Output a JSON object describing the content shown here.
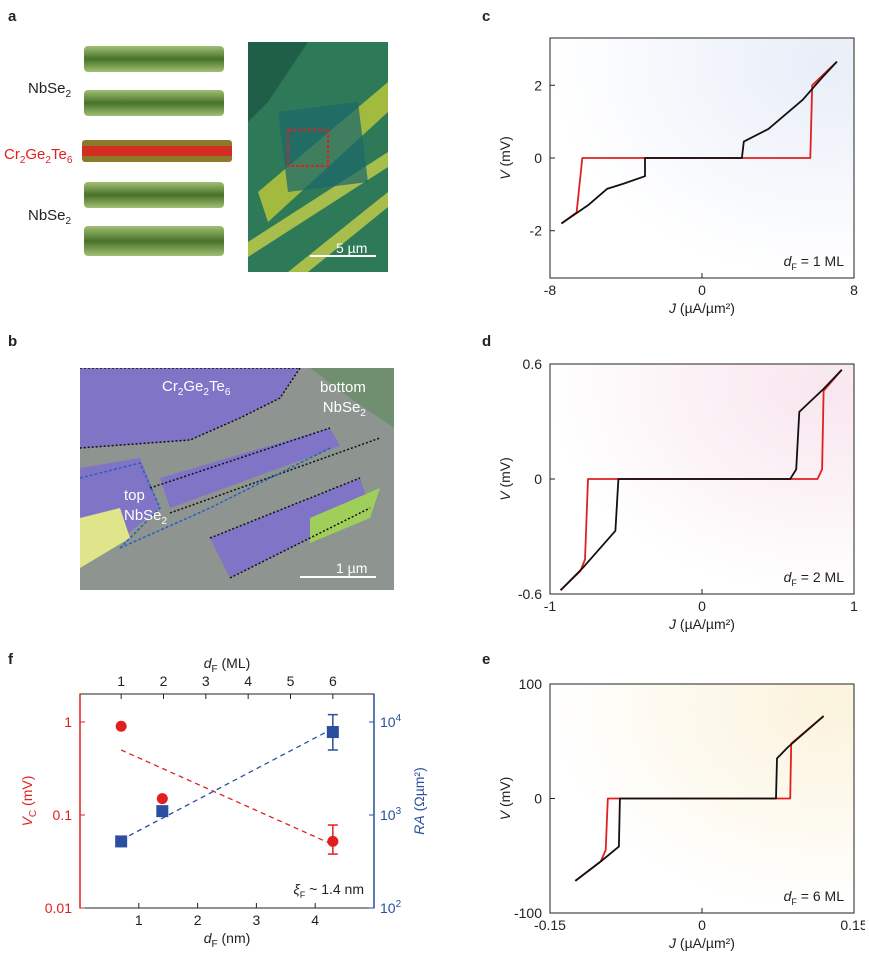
{
  "panels": {
    "a": "a",
    "b": "b",
    "c": "c",
    "d": "d",
    "e": "e",
    "f": "f"
  },
  "panel_a": {
    "layers": [
      {
        "base": "NbSe",
        "sub": "2",
        "color": "#222222"
      },
      {
        "base": "NbSe",
        "sub": "2",
        "color": "#222222"
      }
    ],
    "barrier": {
      "parts": [
        [
          "Cr",
          "2"
        ],
        [
          "Ge",
          "2"
        ],
        [
          "Te",
          "6"
        ]
      ],
      "color": "#e02020"
    },
    "scalebar": "5 µm"
  },
  "panel_b": {
    "labels": {
      "crgete": [
        [
          "Cr",
          "2"
        ],
        [
          "Ge",
          "2"
        ],
        [
          "Te",
          "6"
        ]
      ],
      "bottom_line1": "bottom",
      "bottom_line2": [
        [
          "NbSe",
          "2"
        ]
      ],
      "top_line1": "top",
      "top_line2": [
        [
          "NbSe",
          "2"
        ]
      ]
    },
    "scalebar": "1 µm"
  },
  "chart_data": [
    {
      "id": "c",
      "type": "line",
      "xlabel": "J (µA/µm²)",
      "ylabel": "V (mV)",
      "xlim": [
        -8,
        8
      ],
      "ylim": [
        -3.3,
        3.3
      ],
      "xticks": [
        -8,
        0,
        8
      ],
      "yticks": [
        -2,
        0,
        2
      ],
      "annotation": "dF = 1 ML",
      "series": [
        {
          "color": "#e02020",
          "points": [
            [
              -7.4,
              -1.8
            ],
            [
              -6.6,
              -1.5
            ],
            [
              -6.3,
              0.0
            ],
            [
              0,
              0
            ],
            [
              5.7,
              0.0
            ],
            [
              5.8,
              2.0
            ],
            [
              7.1,
              2.65
            ]
          ]
        },
        {
          "color": "#111111",
          "points": [
            [
              -7.4,
              -1.8
            ],
            [
              -6.0,
              -1.3
            ],
            [
              -5.0,
              -0.85
            ],
            [
              -4.1,
              -0.7
            ],
            [
              -3.0,
              -0.5
            ],
            [
              -3.0,
              0.0
            ],
            [
              2.1,
              0.0
            ],
            [
              2.2,
              0.45
            ],
            [
              3.5,
              0.8
            ],
            [
              5.3,
              1.6
            ],
            [
              6.3,
              2.2
            ],
            [
              7.1,
              2.65
            ]
          ]
        }
      ]
    },
    {
      "id": "d",
      "type": "line",
      "xlabel": "J (µA/µm²)",
      "ylabel": "V (mV)",
      "xlim": [
        -1,
        1
      ],
      "ylim": [
        -0.6,
        0.6
      ],
      "xticks": [
        -1,
        0,
        1
      ],
      "xticklabels": [
        "-1",
        "0",
        "1"
      ],
      "yticks": [
        -0.6,
        0,
        0.6
      ],
      "yticklabels": [
        "-0.6",
        "0",
        "0.6"
      ],
      "annotation": "dF = 2 ML",
      "series": [
        {
          "color": "#e02020",
          "points": [
            [
              -0.93,
              -0.58
            ],
            [
              -0.8,
              -0.48
            ],
            [
              -0.77,
              -0.42
            ],
            [
              -0.75,
              0.0
            ],
            [
              0.0,
              0.0
            ],
            [
              0.76,
              0.0
            ],
            [
              0.79,
              0.05
            ],
            [
              0.8,
              0.46
            ],
            [
              0.92,
              0.57
            ]
          ]
        },
        {
          "color": "#111111",
          "points": [
            [
              -0.93,
              -0.58
            ],
            [
              -0.78,
              -0.46
            ],
            [
              -0.57,
              -0.27
            ],
            [
              -0.55,
              0.0
            ],
            [
              0.0,
              0.0
            ],
            [
              0.58,
              0.0
            ],
            [
              0.62,
              0.05
            ],
            [
              0.64,
              0.35
            ],
            [
              0.8,
              0.47
            ],
            [
              0.92,
              0.57
            ]
          ]
        }
      ]
    },
    {
      "id": "e",
      "type": "line",
      "xlabel": "J (µA/µm²)",
      "ylabel": "V (mV)",
      "xlim": [
        -0.15,
        0.15
      ],
      "ylim": [
        -100,
        100
      ],
      "xticks": [
        -0.15,
        0,
        0.15
      ],
      "xticklabels": [
        "-0.15",
        "0",
        "0.15"
      ],
      "yticks": [
        -100,
        0,
        100
      ],
      "annotation": "dF = 6 ML",
      "series": [
        {
          "color": "#e02020",
          "points": [
            [
              -0.125,
              -72
            ],
            [
              -0.1,
              -55
            ],
            [
              -0.095,
              -45
            ],
            [
              -0.093,
              0.0
            ],
            [
              0.0,
              0.0
            ],
            [
              0.087,
              0.0
            ],
            [
              0.088,
              48
            ],
            [
              0.12,
              72
            ]
          ]
        },
        {
          "color": "#111111",
          "points": [
            [
              -0.125,
              -72
            ],
            [
              -0.1,
              -55
            ],
            [
              -0.082,
              -42
            ],
            [
              -0.081,
              0.0
            ],
            [
              0.0,
              0.0
            ],
            [
              0.073,
              0.0
            ],
            [
              0.074,
              35
            ],
            [
              0.085,
              45
            ],
            [
              0.12,
              72
            ]
          ]
        }
      ]
    },
    {
      "id": "f",
      "type": "scatter",
      "xlabel": "dF (nm)",
      "x2label": "dF (ML)",
      "ylabel": "VC (mV)",
      "y2label": "RA (Ωµm²)",
      "xlim": [
        0,
        5
      ],
      "xticks": [
        1,
        2,
        3,
        4
      ],
      "x2ticks": [
        1,
        2,
        3,
        4,
        5,
        6
      ],
      "ylim_log": [
        0.01,
        2.0
      ],
      "yticks": [
        0.01,
        0.1,
        1
      ],
      "y2lim_log": [
        100,
        20000
      ],
      "y2ticks": [
        100,
        1000,
        10000
      ],
      "annotation": "ξF ~ 1.4 nm",
      "vc": {
        "color": "#e02020",
        "x": [
          0.7,
          1.4,
          4.3
        ],
        "y": [
          0.9,
          0.15,
          0.052
        ],
        "err_low": [
          null,
          null,
          0.038
        ],
        "err_high": [
          null,
          null,
          0.078
        ],
        "fit": [
          [
            0.7,
            0.5
          ],
          [
            4.3,
            0.048
          ]
        ]
      },
      "ra": {
        "color": "#2a4fa0",
        "x": [
          0.7,
          1.4,
          4.3
        ],
        "y": [
          520,
          1100,
          7800
        ],
        "err_low": [
          null,
          null,
          5000
        ],
        "err_high": [
          null,
          null,
          12000
        ],
        "fit": [
          [
            0.7,
            540
          ],
          [
            4.3,
            8500
          ]
        ]
      }
    }
  ]
}
